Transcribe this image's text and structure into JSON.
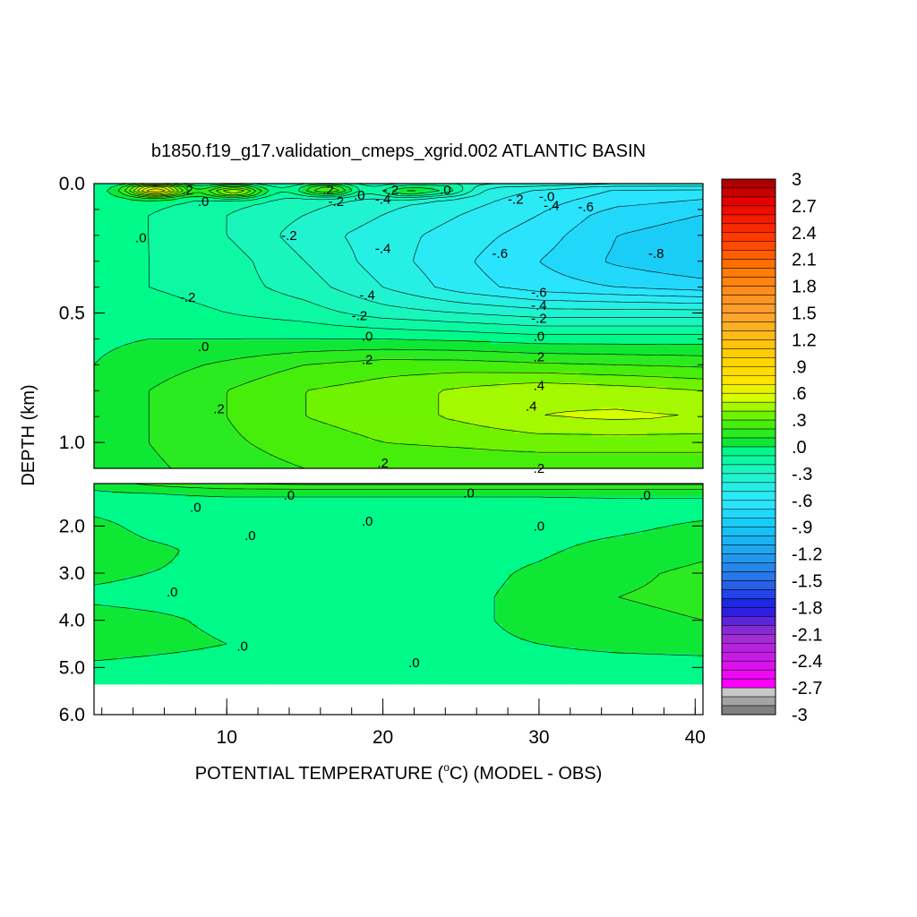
{
  "chart_data": {
    "type": "heatmap",
    "title": "b1850.f19_g17.validation_cmeps_xgrid.002 ATLANTIC BASIN",
    "xlabel_prefix": "POTENTIAL TEMPERATURE (",
    "xlabel_sup": "o",
    "xlabel_suffix": "C) (MODEL - OBS)",
    "ylabel": "DEPTH (km)",
    "xlim": [
      1.5,
      40.5
    ],
    "x_ticks": [
      10,
      20,
      30,
      40
    ],
    "x_tick_labels": [
      "10",
      "20",
      "30",
      "40"
    ],
    "upper_panel": {
      "ylim": [
        0.0,
        1.1
      ],
      "y_ticks": [
        0.0,
        0.5,
        1.0
      ],
      "y_tick_labels": [
        "0.0",
        "0.5",
        "1.0"
      ]
    },
    "lower_panel": {
      "ylim": [
        1.1,
        6.0
      ],
      "data_bottom": 5.35,
      "y_ticks": [
        2.0,
        3.0,
        4.0,
        5.0,
        6.0
      ],
      "y_tick_labels": [
        "2.0",
        "3.0",
        "4.0",
        "5.0",
        "6.0"
      ]
    },
    "colorbar": {
      "min": -3.0,
      "max": 3.0,
      "step": 0.1,
      "tick_labels": [
        "3",
        "2.7",
        "2.4",
        "2.1",
        "1.8",
        "1.5",
        "1.2",
        ".9",
        ".6",
        ".3",
        ".0",
        "-.3",
        "-.6",
        "-.9",
        "-1.2",
        "-1.5",
        "-1.8",
        "-2.1",
        "-2.4",
        "-2.7",
        "-3"
      ],
      "color_stops": [
        [
          -3.0,
          "#6e6e6e"
        ],
        [
          -2.75,
          "#c8c8c8"
        ],
        [
          -2.65,
          "#ff00ff"
        ],
        [
          -2.1,
          "#9a2fd0"
        ],
        [
          -1.8,
          "#1a1ae6"
        ],
        [
          -1.5,
          "#2a6ee6"
        ],
        [
          -1.2,
          "#1ea0ef"
        ],
        [
          -0.9,
          "#16c8f5"
        ],
        [
          -0.6,
          "#2ee8ff"
        ],
        [
          -0.3,
          "#1ef5c8"
        ],
        [
          -0.05,
          "#00fa8a"
        ],
        [
          0.0,
          "#00e640"
        ],
        [
          0.3,
          "#55f000"
        ],
        [
          0.55,
          "#d8ff00"
        ],
        [
          0.75,
          "#ffe400"
        ],
        [
          1.0,
          "#ffd200"
        ],
        [
          1.5,
          "#ffa030"
        ],
        [
          2.0,
          "#ff7800"
        ],
        [
          2.4,
          "#ff3000"
        ],
        [
          2.75,
          "#e60000"
        ],
        [
          3.0,
          "#a00000"
        ]
      ]
    },
    "field_upper": {
      "depths": [
        0.0,
        0.02,
        0.06,
        0.12,
        0.2,
        0.3,
        0.4,
        0.5,
        0.6,
        0.7,
        0.8,
        0.9,
        1.0,
        1.1
      ],
      "temps": [
        1.5,
        5,
        10,
        15,
        20,
        25,
        30,
        35,
        40.5
      ],
      "values": [
        [
          -0.1,
          -0.1,
          -0.2,
          -0.2,
          -0.3,
          -0.3,
          -0.3,
          -0.4,
          -0.4
        ],
        [
          -0.05,
          0.02,
          -0.1,
          -0.15,
          -0.3,
          -0.4,
          -0.5,
          -0.6,
          -0.6
        ],
        [
          -0.05,
          -0.05,
          -0.15,
          -0.25,
          -0.35,
          -0.45,
          -0.55,
          -0.65,
          -0.7
        ],
        [
          -0.05,
          -0.1,
          -0.2,
          -0.3,
          -0.4,
          -0.5,
          -0.6,
          -0.75,
          -0.8
        ],
        [
          -0.05,
          -0.1,
          -0.2,
          -0.35,
          -0.45,
          -0.55,
          -0.65,
          -0.8,
          -0.85
        ],
        [
          -0.05,
          -0.1,
          -0.15,
          -0.3,
          -0.45,
          -0.58,
          -0.7,
          -0.82,
          -0.9
        ],
        [
          -0.05,
          -0.1,
          -0.15,
          -0.25,
          -0.4,
          -0.55,
          -0.65,
          -0.7,
          -0.75
        ],
        [
          -0.05,
          -0.05,
          -0.1,
          -0.15,
          -0.25,
          -0.3,
          -0.35,
          -0.35,
          -0.35
        ],
        [
          -0.02,
          0.0,
          0.0,
          0.0,
          0.0,
          -0.02,
          -0.05,
          -0.05,
          -0.05
        ],
        [
          0.0,
          0.05,
          0.12,
          0.2,
          0.25,
          0.25,
          0.22,
          0.2,
          0.18
        ],
        [
          0.02,
          0.1,
          0.2,
          0.3,
          0.35,
          0.42,
          0.48,
          0.45,
          0.4
        ],
        [
          0.02,
          0.1,
          0.2,
          0.3,
          0.35,
          0.42,
          0.5,
          0.52,
          0.5
        ],
        [
          0.02,
          0.1,
          0.18,
          0.25,
          0.3,
          0.32,
          0.35,
          0.35,
          0.35
        ],
        [
          0.02,
          0.08,
          0.15,
          0.2,
          0.22,
          0.22,
          0.22,
          0.22,
          0.22
        ]
      ]
    },
    "field_lower": {
      "depths": [
        1.1,
        1.3,
        1.6,
        2.0,
        2.5,
        3.0,
        3.5,
        4.0,
        4.5,
        5.0,
        5.35
      ],
      "temps": [
        1.5,
        5,
        10,
        15,
        20,
        25,
        30,
        35,
        40.5
      ],
      "values": [
        [
          0.05,
          0.12,
          0.2,
          0.22,
          0.22,
          0.22,
          0.22,
          0.22,
          0.22
        ],
        [
          -0.02,
          0.0,
          0.02,
          0.02,
          0.02,
          0.02,
          0.02,
          0.03,
          0.03
        ],
        [
          -0.03,
          -0.05,
          -0.05,
          -0.05,
          -0.05,
          -0.05,
          -0.05,
          -0.05,
          -0.05
        ],
        [
          0.03,
          -0.03,
          -0.05,
          -0.05,
          -0.05,
          -0.05,
          -0.05,
          -0.03,
          0.02
        ],
        [
          0.06,
          0.02,
          -0.03,
          -0.05,
          -0.05,
          -0.05,
          -0.02,
          0.04,
          0.08
        ],
        [
          0.02,
          0.0,
          -0.02,
          -0.05,
          -0.05,
          -0.04,
          0.02,
          0.08,
          0.12
        ],
        [
          -0.02,
          -0.03,
          -0.03,
          -0.05,
          -0.05,
          -0.03,
          0.04,
          0.1,
          0.12
        ],
        [
          0.04,
          0.02,
          -0.02,
          -0.05,
          -0.05,
          -0.03,
          0.04,
          0.08,
          0.1
        ],
        [
          0.05,
          0.03,
          0.0,
          -0.03,
          -0.04,
          -0.03,
          0.0,
          0.03,
          0.05
        ],
        [
          -0.02,
          -0.03,
          -0.04,
          -0.05,
          -0.05,
          -0.05,
          -0.05,
          -0.05,
          -0.05
        ],
        [
          -0.02,
          -0.03,
          -0.05,
          -0.05,
          0.0,
          -0.05,
          -0.05,
          -0.05,
          -0.05
        ]
      ]
    },
    "upper_hotspots": [
      {
        "temp": 5.5,
        "depth": 0.025,
        "value": 0.8
      },
      {
        "temp": 10.5,
        "depth": 0.03,
        "value": 0.6
      },
      {
        "temp": 16.5,
        "depth": 0.025,
        "value": 0.5
      },
      {
        "temp": 21.5,
        "depth": 0.03,
        "value": 0.4
      },
      {
        "temp": 24,
        "depth": 0.025,
        "value": 0.3
      }
    ],
    "contour_labels_upper": [
      {
        "text": ".2",
        "x": 7.5,
        "y": 0.025
      },
      {
        "text": ".0",
        "x": 8.5,
        "y": 0.07
      },
      {
        "text": ".2",
        "x": 16.5,
        "y": 0.025
      },
      {
        "text": "-.2",
        "x": 17.0,
        "y": 0.07
      },
      {
        "text": ".0",
        "x": 18.5,
        "y": 0.045
      },
      {
        "text": "-.2",
        "x": 20.5,
        "y": 0.025
      },
      {
        "text": "-.4",
        "x": 20.0,
        "y": 0.06
      },
      {
        "text": ".0",
        "x": 24.0,
        "y": 0.025
      },
      {
        "text": "-.2",
        "x": 28.5,
        "y": 0.06
      },
      {
        "text": "-.0",
        "x": 30.5,
        "y": 0.05
      },
      {
        "text": "-.4",
        "x": 30.8,
        "y": 0.085
      },
      {
        "text": "-.6",
        "x": 33.0,
        "y": 0.09
      },
      {
        "text": ".0",
        "x": 4.5,
        "y": 0.21
      },
      {
        "text": "-.2",
        "x": 14.0,
        "y": 0.2
      },
      {
        "text": "-.4",
        "x": 20.0,
        "y": 0.25
      },
      {
        "text": "-.6",
        "x": 27.5,
        "y": 0.27
      },
      {
        "text": "-.8",
        "x": 37.5,
        "y": 0.27
      },
      {
        "text": "-.2",
        "x": 7.5,
        "y": 0.44
      },
      {
        "text": "-.4",
        "x": 19.0,
        "y": 0.43
      },
      {
        "text": "-.6",
        "x": 30.0,
        "y": 0.42
      },
      {
        "text": "-.4",
        "x": 30.0,
        "y": 0.47
      },
      {
        "text": "-.2",
        "x": 18.5,
        "y": 0.51
      },
      {
        "text": "-.2",
        "x": 30.0,
        "y": 0.52
      },
      {
        "text": ".0",
        "x": 8.5,
        "y": 0.63
      },
      {
        "text": ".0",
        "x": 19.0,
        "y": 0.59
      },
      {
        "text": ".0",
        "x": 30.0,
        "y": 0.59
      },
      {
        "text": ".2",
        "x": 19.0,
        "y": 0.68
      },
      {
        "text": ".2",
        "x": 30.0,
        "y": 0.67
      },
      {
        "text": ".4",
        "x": 30.0,
        "y": 0.78
      },
      {
        "text": ".2",
        "x": 9.5,
        "y": 0.87
      },
      {
        "text": ".4",
        "x": 29.5,
        "y": 0.86
      },
      {
        "text": ".2",
        "x": 20.0,
        "y": 1.08
      },
      {
        "text": ".2",
        "x": 30.0,
        "y": 1.1
      }
    ],
    "contour_labels_lower": [
      {
        "text": ".0",
        "x": 14.0,
        "y": 1.35
      },
      {
        "text": ".0",
        "x": 25.5,
        "y": 1.3
      },
      {
        "text": ".0",
        "x": 36.8,
        "y": 1.35
      },
      {
        "text": ".0",
        "x": 8.0,
        "y": 1.6
      },
      {
        "text": ".0",
        "x": 19.0,
        "y": 1.9
      },
      {
        "text": ".0",
        "x": 30.0,
        "y": 2.0
      },
      {
        "text": ".0",
        "x": 11.5,
        "y": 2.2
      },
      {
        "text": ".0",
        "x": 6.5,
        "y": 3.4
      },
      {
        "text": ".0",
        "x": 11.0,
        "y": 4.55
      },
      {
        "text": ".0",
        "x": 22.0,
        "y": 4.9
      }
    ]
  }
}
